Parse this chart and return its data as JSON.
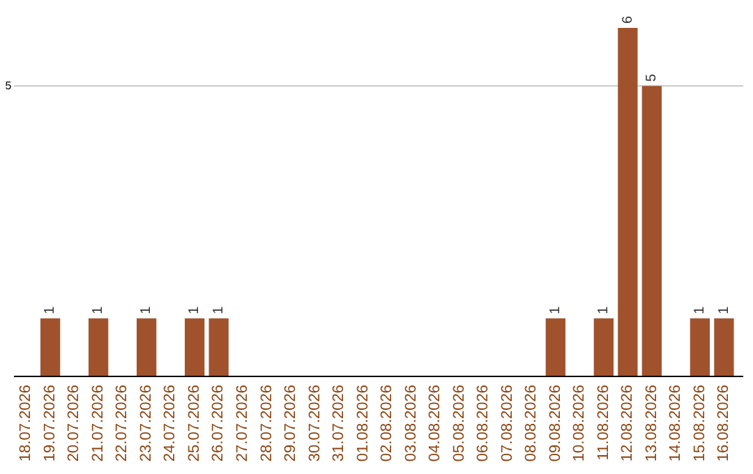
{
  "chart_data": {
    "type": "bar",
    "categories": [
      "18.07.2026",
      "19.07.2026",
      "20.07.2026",
      "21.07.2026",
      "22.07.2026",
      "23.07.2026",
      "24.07.2026",
      "25.07.2026",
      "26.07.2026",
      "27.07.2026",
      "28.07.2026",
      "29.07.2026",
      "30.07.2026",
      "31.07.2026",
      "01.08.2026",
      "02.08.2026",
      "03.08.2026",
      "04.08.2026",
      "05.08.2026",
      "06.08.2026",
      "07.08.2026",
      "08.08.2026",
      "09.08.2026",
      "10.08.2026",
      "11.08.2026",
      "12.08.2026",
      "13.08.2026",
      "14.08.2026",
      "15.08.2026",
      "16.08.2026"
    ],
    "values": [
      0,
      1,
      0,
      1,
      0,
      1,
      0,
      1,
      1,
      0,
      0,
      0,
      0,
      0,
      0,
      0,
      0,
      0,
      0,
      0,
      0,
      0,
      1,
      0,
      1,
      6,
      5,
      0,
      1,
      1
    ],
    "value_labels": [
      null,
      "1",
      null,
      "1",
      null,
      "1",
      null,
      "1",
      "1",
      null,
      null,
      null,
      null,
      null,
      null,
      null,
      null,
      null,
      null,
      null,
      null,
      null,
      "1",
      null,
      "1",
      "6",
      "5",
      null,
      "1",
      "1"
    ],
    "color": "#a0522d",
    "ylim": [
      0,
      6
    ],
    "yticks": [
      5
    ],
    "grid": "y"
  }
}
